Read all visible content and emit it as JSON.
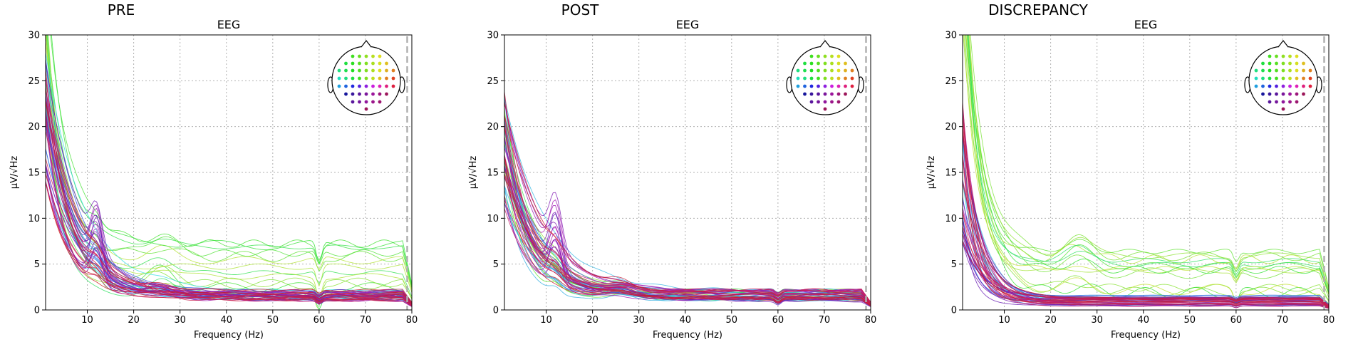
{
  "chart_data": [
    {
      "type": "line",
      "title": "PRE",
      "subtitle": "EEG",
      "xlabel": "Frequency (Hz)",
      "ylabel": "µV/√Hz",
      "xlim": [
        1,
        80
      ],
      "ylim": [
        0,
        30
      ],
      "xticks": [
        "10",
        "20",
        "30",
        "40",
        "50",
        "60",
        "70",
        "80"
      ],
      "yticks": [
        "0",
        "5",
        "10",
        "15",
        "20",
        "25",
        "30"
      ],
      "grid": true,
      "legend": "sensor-map inset top-right",
      "series_summary": {
        "count": 60,
        "low_freq_start_range": [
          12,
          34
        ],
        "alpha_peak_hz": 12,
        "alpha_peak_max": 10.5,
        "line_noise_dip_hz": 60,
        "high_freq_levels_range": [
          1.0,
          8.0
        ]
      }
    },
    {
      "type": "line",
      "title": "POST",
      "subtitle": "EEG",
      "xlabel": "Frequency (Hz)",
      "ylabel": "µV/√Hz",
      "xlim": [
        1,
        80
      ],
      "ylim": [
        0,
        30
      ],
      "xticks": [
        "10",
        "20",
        "30",
        "40",
        "50",
        "60",
        "70",
        "80"
      ],
      "yticks": [
        "0",
        "5",
        "10",
        "15",
        "20",
        "25",
        "30"
      ],
      "grid": true,
      "legend": "sensor-map inset top-right",
      "series_summary": {
        "count": 60,
        "low_freq_start_range": [
          10,
          23
        ],
        "alpha_peak_hz": 12,
        "alpha_peak_max": 10.3,
        "line_noise_dip_hz": 60,
        "high_freq_levels_range": [
          1.0,
          2.3
        ]
      }
    },
    {
      "type": "line",
      "title": "DISCREPANCY",
      "subtitle": "EEG",
      "xlabel": "Frequency (Hz)",
      "ylabel": "µV/√Hz",
      "xlim": [
        1,
        80
      ],
      "ylim": [
        0,
        30
      ],
      "xticks": [
        "10",
        "20",
        "30",
        "40",
        "50",
        "60",
        "70",
        "80"
      ],
      "yticks": [
        "0",
        "5",
        "10",
        "15",
        "20",
        "25",
        "30"
      ],
      "grid": true,
      "legend": "sensor-map inset top-right",
      "series_summary": {
        "count": 60,
        "low_freq_start_range": [
          8,
          40
        ],
        "alpha_peak_hz": null,
        "alpha_peak_max": null,
        "line_noise_dip_hz": 60,
        "high_freq_levels_range": [
          0.4,
          7.5
        ]
      }
    }
  ]
}
